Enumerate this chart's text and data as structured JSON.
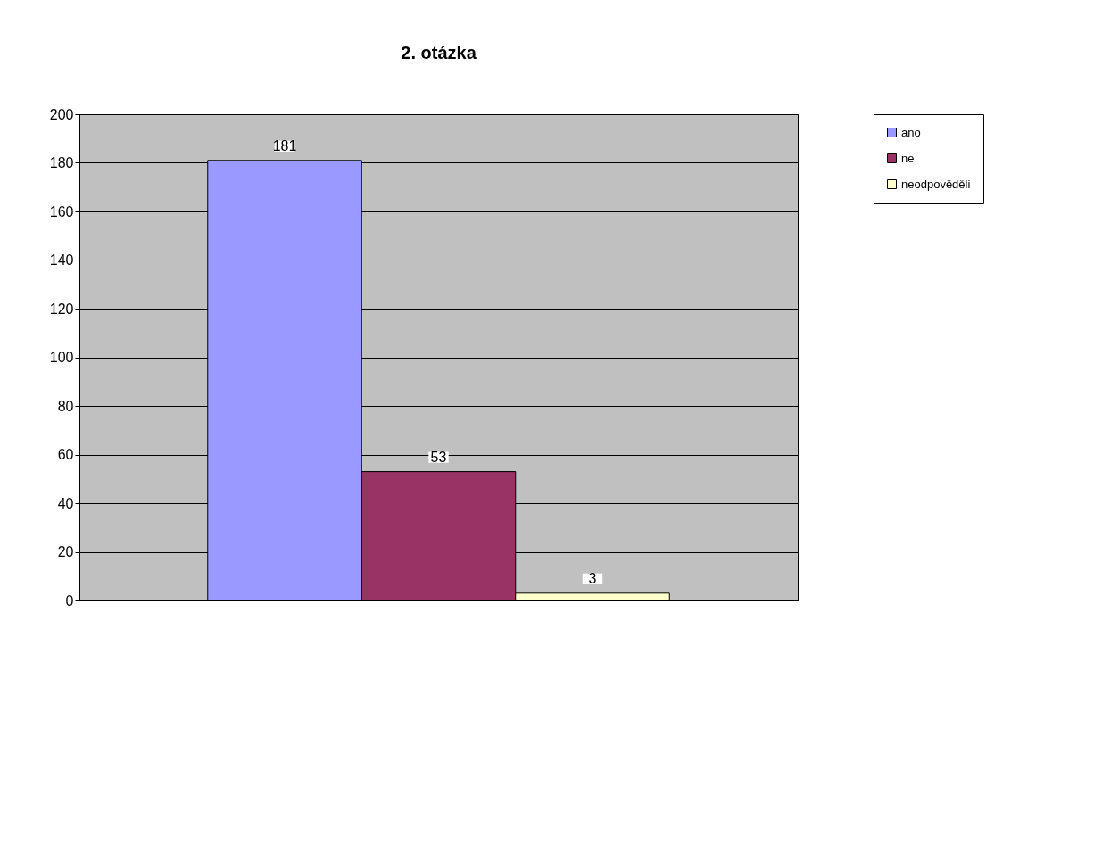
{
  "chart_data": {
    "type": "bar",
    "title": "2. otázka",
    "categories": [
      null
    ],
    "series": [
      {
        "name": "ano",
        "color": "#9999ff",
        "values": [
          181
        ]
      },
      {
        "name": "ne",
        "color": "#993366",
        "values": [
          53
        ]
      },
      {
        "name": "neodpověděli",
        "color": "#ffffcc",
        "values": [
          3
        ]
      }
    ],
    "ylim": [
      0,
      200
    ],
    "yticks": [
      0,
      20,
      40,
      60,
      80,
      100,
      120,
      140,
      160,
      180,
      200
    ],
    "grid": "y",
    "legend": "right",
    "data_labels": true
  }
}
